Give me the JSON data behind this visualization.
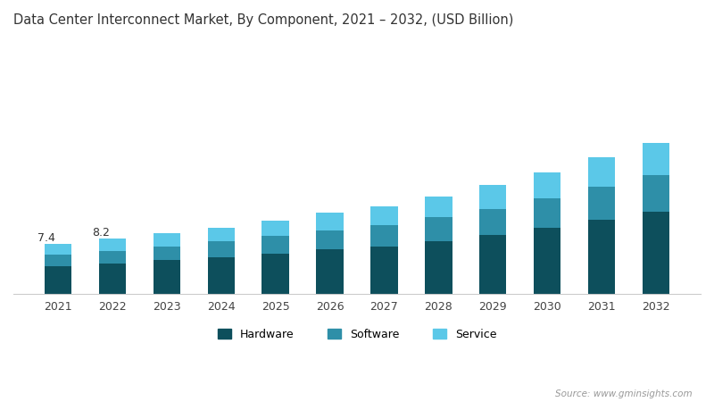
{
  "title": "Data Center Interconnect Market, By Component, 2021 – 2032, (USD Billion)",
  "years": [
    2021,
    2022,
    2023,
    2024,
    2025,
    2026,
    2027,
    2028,
    2029,
    2030,
    2031,
    2032
  ],
  "hardware": [
    4.1,
    4.5,
    5.0,
    5.5,
    6.0,
    6.6,
    7.1,
    7.9,
    8.8,
    9.8,
    11.0,
    12.2
  ],
  "software": [
    1.7,
    1.9,
    2.1,
    2.3,
    2.6,
    2.9,
    3.1,
    3.5,
    3.9,
    4.4,
    5.0,
    5.5
  ],
  "service": [
    1.6,
    1.8,
    1.9,
    2.1,
    2.3,
    2.6,
    2.8,
    3.1,
    3.5,
    3.9,
    4.4,
    4.8
  ],
  "annotations": [
    {
      "year": 2021,
      "text": "7.4"
    },
    {
      "year": 2022,
      "text": "8.2"
    }
  ],
  "hardware_color": "#0d4f5c",
  "software_color": "#2e8fa8",
  "service_color": "#5bc8e8",
  "background_color": "#ffffff",
  "legend_labels": [
    "Hardware",
    "Software",
    "Service"
  ],
  "source_text": "Source: www.gminsights.com",
  "bar_width": 0.5,
  "ylim": [
    0,
    38
  ],
  "title_fontsize": 10.5,
  "tick_fontsize": 9
}
